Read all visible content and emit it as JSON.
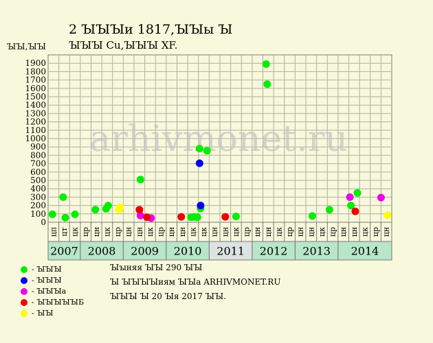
{
  "header": {
    "title_line1": "2 ꙐꙐꙐи 1817,ꙐꙐы Ꙑ",
    "title_line2": "ꙐꙐꙐ Cu,ꙐꙐꙐ XF.",
    "y_unit": "ꙐꙐ,ꙐꙐ"
  },
  "chart_data": {
    "type": "scatter",
    "title": "",
    "xlabel": "",
    "ylabel": "ꙐꙐ,ꙐꙐ",
    "ylim": [
      0,
      2000
    ],
    "yticks": [
      0,
      100,
      200,
      300,
      400,
      500,
      600,
      700,
      800,
      900,
      1000,
      1100,
      1200,
      1300,
      1400,
      1500,
      1600,
      1700,
      1800,
      1900
    ],
    "watermark": "arhivmonet.ru",
    "quarter_labels": [
      "цп",
      "цт",
      "цк",
      "цр",
      "цн",
      "цк",
      "цр",
      "цн",
      "цн",
      "цк",
      "цр",
      "цн",
      "цн",
      "цк",
      "цк",
      "цн",
      "цн",
      "цк",
      "цр",
      "цн",
      "цн",
      "цк",
      "цр",
      "цн",
      "цн",
      "цк",
      "цр",
      "цн",
      "цн",
      "цк",
      "цр",
      "цн"
    ],
    "years": [
      {
        "label": "2007",
        "start": 0,
        "end": 3,
        "color": "#b8e6c8"
      },
      {
        "label": "2008",
        "start": 3,
        "end": 7,
        "color": "#b8e6c8"
      },
      {
        "label": "2009",
        "start": 7,
        "end": 11,
        "color": "#b8e6c8"
      },
      {
        "label": "2010",
        "start": 11,
        "end": 15,
        "color": "#b8e6c8"
      },
      {
        "label": "2011",
        "start": 15,
        "end": 19,
        "color": "#dde2e2"
      },
      {
        "label": "2012",
        "start": 19,
        "end": 23,
        "color": "#b8e6c8"
      },
      {
        "label": "2013",
        "start": 23,
        "end": 27,
        "color": "#b8e6c8"
      },
      {
        "label": "2014",
        "start": 27,
        "end": 32,
        "color": "#b8e6c8"
      }
    ],
    "series": [
      {
        "color": "#00ee00",
        "points": [
          [
            0.4,
            95
          ],
          [
            1.4,
            300
          ],
          [
            1.6,
            55
          ],
          [
            2.5,
            95
          ],
          [
            4.4,
            150
          ],
          [
            5.4,
            160
          ],
          [
            5.6,
            200
          ],
          [
            8.6,
            510
          ],
          [
            13.3,
            60
          ],
          [
            13.6,
            65
          ],
          [
            13.9,
            60
          ],
          [
            14.2,
            165
          ],
          [
            14.1,
            880
          ],
          [
            14.8,
            855
          ],
          [
            17.5,
            70
          ],
          [
            20.3,
            1890
          ],
          [
            20.4,
            1650
          ],
          [
            24.6,
            75
          ],
          [
            26.2,
            150
          ],
          [
            28.2,
            200
          ],
          [
            28.8,
            350
          ]
        ]
      },
      {
        "color": "#0000ee",
        "points": [
          [
            14.1,
            705
          ],
          [
            14.2,
            200
          ]
        ]
      },
      {
        "color": "#ee00ee",
        "points": [
          [
            8.6,
            80
          ],
          [
            9.6,
            50
          ],
          [
            28.1,
            300
          ],
          [
            31.0,
            295
          ]
        ]
      },
      {
        "color": "#ee0000",
        "points": [
          [
            8.5,
            150
          ],
          [
            9.2,
            60
          ],
          [
            12.4,
            65
          ],
          [
            16.5,
            65
          ],
          [
            28.6,
            130
          ]
        ]
      },
      {
        "color": "#ffff00",
        "points": [
          [
            6.6,
            150
          ],
          [
            6.7,
            180
          ],
          [
            31.6,
            85
          ]
        ]
      }
    ]
  },
  "legend": [
    {
      "label": "- ꙐꙐꙐ",
      "color": "#00ee00"
    },
    {
      "label": "- ꙐꙐꙐ",
      "color": "#0000ee"
    },
    {
      "label": "- ꙐꙐꙐа",
      "color": "#ee00ee"
    },
    {
      "label": "- ꙐꙐꙐꙐꙐБ",
      "color": "#ee0000"
    },
    {
      "label": "- ꙐꙐ",
      "color": "#ffff00"
    }
  ],
  "notes": {
    "line1": "Ꙑꙑняя ꙐꙐ 290 ꙐꙐ",
    "line2": "Ꙑ ꙐꙐꙐꙐиям ꙐꙐа ARHIVMONET.RU",
    "line3": "ꙐꙐꙐ Ꙑ 20 Ꙑя 2017 ꙐꙐ."
  }
}
